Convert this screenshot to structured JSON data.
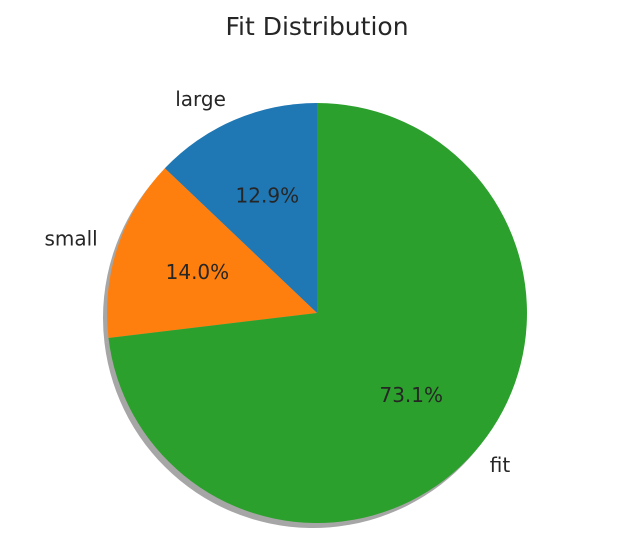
{
  "chart_data": {
    "type": "pie",
    "title": "Fit Distribution",
    "slices": [
      {
        "label": "large",
        "value": 12.9,
        "pct_label": "12.9%",
        "color": "#1f77b4"
      },
      {
        "label": "small",
        "value": 14.0,
        "pct_label": "14.0%",
        "color": "#ff7f0e"
      },
      {
        "label": "fit",
        "value": 73.1,
        "pct_label": "73.1%",
        "color": "#2ca02c"
      }
    ],
    "start_angle_deg": 90,
    "direction": "counterclockwise",
    "shadow": true
  }
}
